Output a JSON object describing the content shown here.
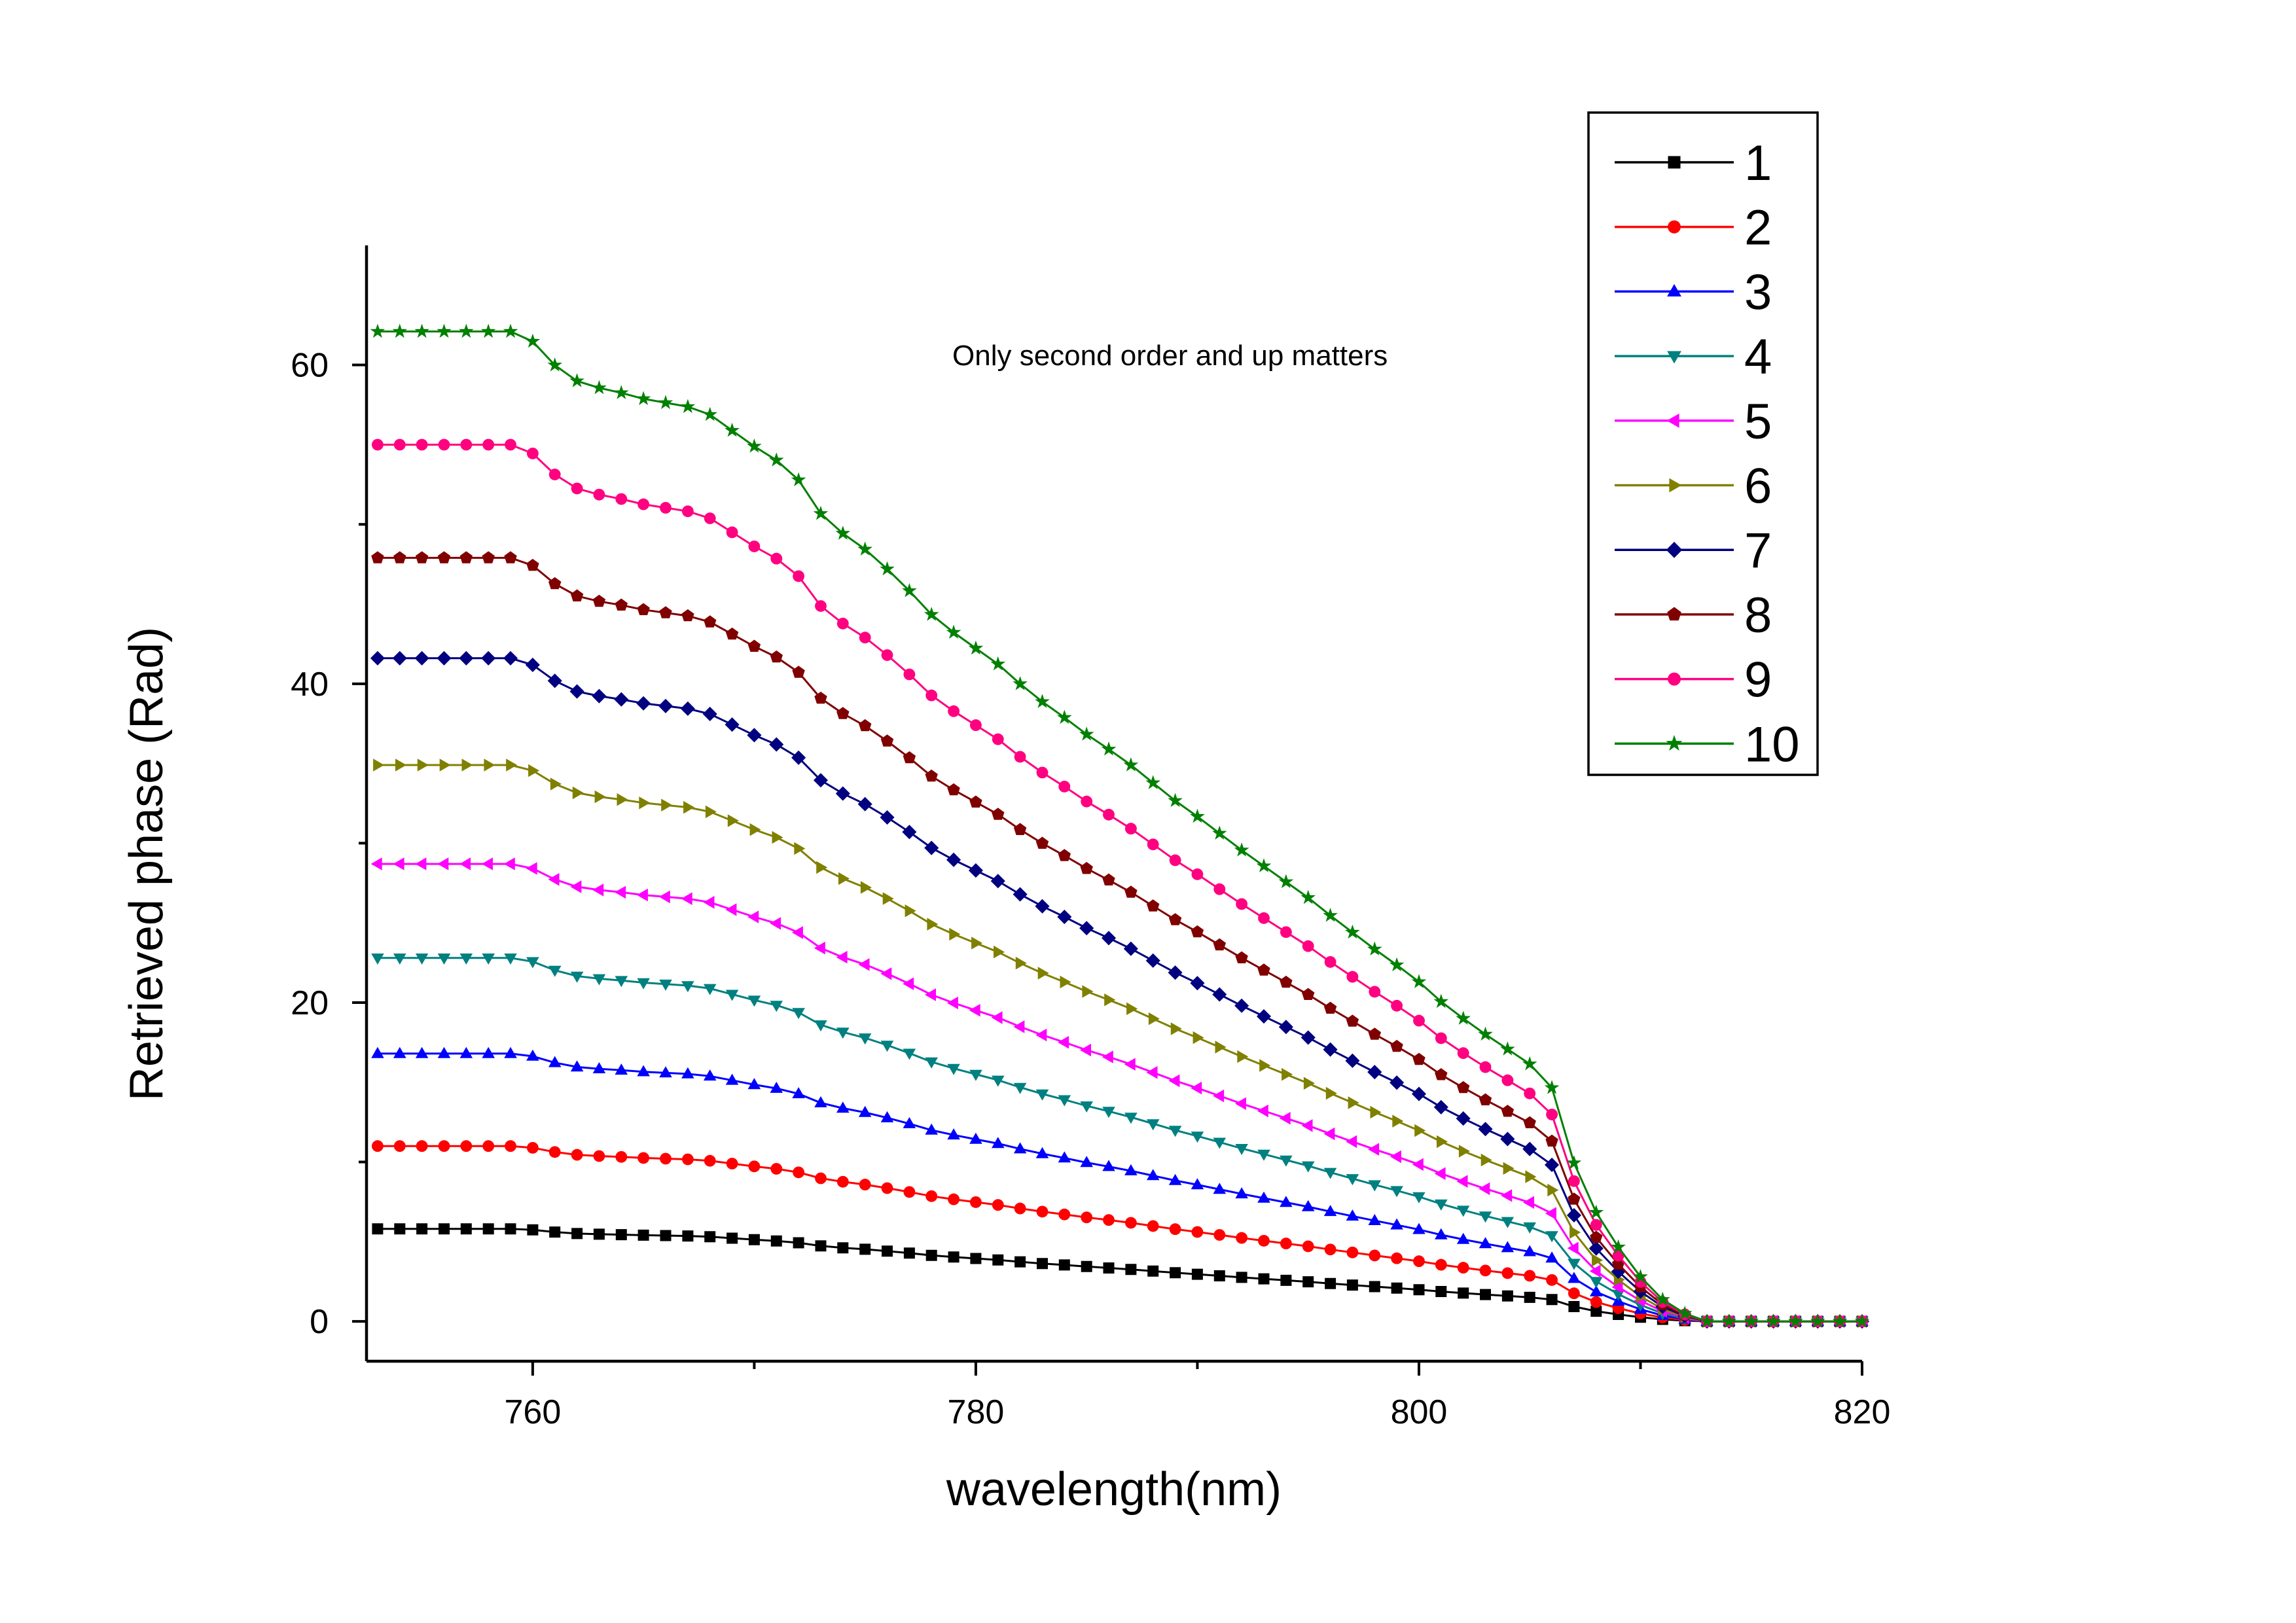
{
  "chart_data": {
    "type": "line",
    "title": "",
    "xlabel": "wavelength(nm)",
    "ylabel": "Retrieved phase (Rad)",
    "annotation": "Only second order and up matters",
    "xlim": [
      752.5,
      820
    ],
    "ylim": [
      -2.5,
      67.5
    ],
    "x_ticks": [
      760,
      780,
      800,
      820
    ],
    "x_tick_labels": [
      "760",
      "780",
      "800",
      "820"
    ],
    "y_ticks": [
      0,
      20,
      40,
      60
    ],
    "y_tick_labels": [
      "0",
      "20",
      "40",
      "60"
    ],
    "grid": false,
    "legend_position": "top-right",
    "x": [
      753,
      754,
      755,
      756,
      757,
      758,
      759,
      760,
      761,
      762,
      763,
      764,
      765,
      766,
      767,
      768,
      769,
      770,
      771,
      772,
      773,
      774,
      775,
      776,
      777,
      778,
      779,
      780,
      781,
      782,
      783,
      784,
      785,
      786,
      787,
      788,
      789,
      790,
      791,
      792,
      793,
      794,
      795,
      796,
      797,
      798,
      799,
      800,
      801,
      802,
      803,
      804,
      805,
      806,
      807,
      808,
      809,
      810,
      811,
      812,
      813,
      814,
      815,
      816,
      817,
      818,
      819,
      820
    ],
    "base_profile": [
      1,
      1,
      1,
      1,
      1,
      1,
      1,
      0.99,
      0.966,
      0.95,
      0.943,
      0.938,
      0.932,
      0.928,
      0.924,
      0.916,
      0.9,
      0.884,
      0.87,
      0.85,
      0.816,
      0.796,
      0.78,
      0.76,
      0.738,
      0.714,
      0.696,
      0.68,
      0.664,
      0.644,
      0.626,
      0.61,
      0.593,
      0.578,
      0.562,
      0.544,
      0.526,
      0.51,
      0.493,
      0.476,
      0.46,
      0.444,
      0.428,
      0.41,
      0.393,
      0.376,
      0.36,
      0.343,
      0.323,
      0.306,
      0.29,
      0.275,
      0.26,
      0.236,
      0.16,
      0.11,
      0.075,
      0.045,
      0.022,
      0.008,
      0,
      0,
      0,
      0,
      0,
      0,
      0,
      0
    ],
    "series": [
      {
        "name": "1",
        "amplitude": 5.8,
        "color": "#000000",
        "marker": "square"
      },
      {
        "name": "2",
        "amplitude": 11.0,
        "color": "#ff0000",
        "marker": "circle"
      },
      {
        "name": "3",
        "amplitude": 16.8,
        "color": "#0000ff",
        "marker": "triangle-up"
      },
      {
        "name": "4",
        "amplitude": 22.8,
        "color": "#008080",
        "marker": "triangle-down"
      },
      {
        "name": "5",
        "amplitude": 28.7,
        "color": "#ff00ff",
        "marker": "triangle-left"
      },
      {
        "name": "6",
        "amplitude": 34.9,
        "color": "#808000",
        "marker": "triangle-right"
      },
      {
        "name": "7",
        "amplitude": 41.6,
        "color": "#000080",
        "marker": "diamond"
      },
      {
        "name": "8",
        "amplitude": 47.9,
        "color": "#800000",
        "marker": "pentagon"
      },
      {
        "name": "9",
        "amplitude": 55.0,
        "color": "#ff0080",
        "marker": "circle"
      },
      {
        "name": "10",
        "amplitude": 62.1,
        "color": "#008000",
        "marker": "star"
      }
    ]
  }
}
